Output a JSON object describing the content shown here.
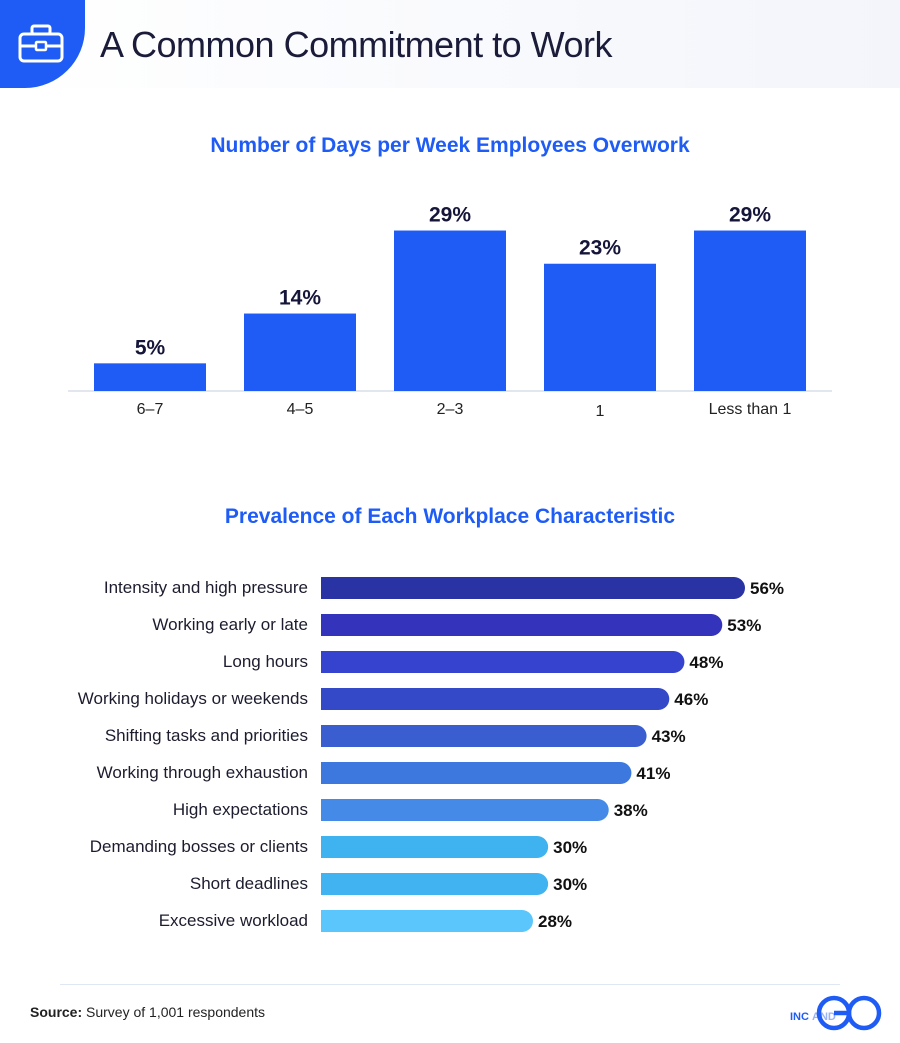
{
  "header": {
    "title": "A Common Commitment to Work",
    "icon": "briefcase-icon"
  },
  "colors": {
    "accent": "#1f5cf5",
    "bar_gradient": [
      "#2a33a3",
      "#3333bb",
      "#3543cf",
      "#3449c8",
      "#3a5dd0",
      "#3c78de",
      "#448ae6",
      "#3fb2f0",
      "#42b3f1",
      "#5ac6fb"
    ]
  },
  "chart_data": [
    {
      "type": "bar",
      "title": "Number of Days per Week Employees Overwork",
      "categories": [
        "6–7",
        "4–5",
        "2–3",
        "1",
        "Less than 1"
      ],
      "values": [
        5,
        14,
        29,
        23,
        29
      ],
      "value_labels": [
        "5%",
        "14%",
        "29%",
        "23%",
        "29%"
      ],
      "ylim": [
        0,
        30
      ],
      "grid": false
    },
    {
      "type": "bar",
      "orientation": "horizontal",
      "title": "Prevalence of Each Workplace Characteristic",
      "categories": [
        "Intensity and high pressure",
        "Working early or late",
        "Long hours",
        "Working holidays or weekends",
        "Shifting tasks and priorities",
        "Working through exhaustion",
        "High expectations",
        "Demanding bosses or clients",
        "Short deadlines",
        "Excessive workload"
      ],
      "values": [
        56,
        53,
        48,
        46,
        43,
        41,
        38,
        30,
        30,
        28
      ],
      "value_labels": [
        "56%",
        "53%",
        "48%",
        "46%",
        "43%",
        "41%",
        "38%",
        "30%",
        "30%",
        "28%"
      ],
      "xlim": [
        0,
        56
      ],
      "grid": false
    }
  ],
  "footer": {
    "source_label": "Source:",
    "source_text": " Survey of 1,001 respondents",
    "logo_text": "INC AND"
  }
}
